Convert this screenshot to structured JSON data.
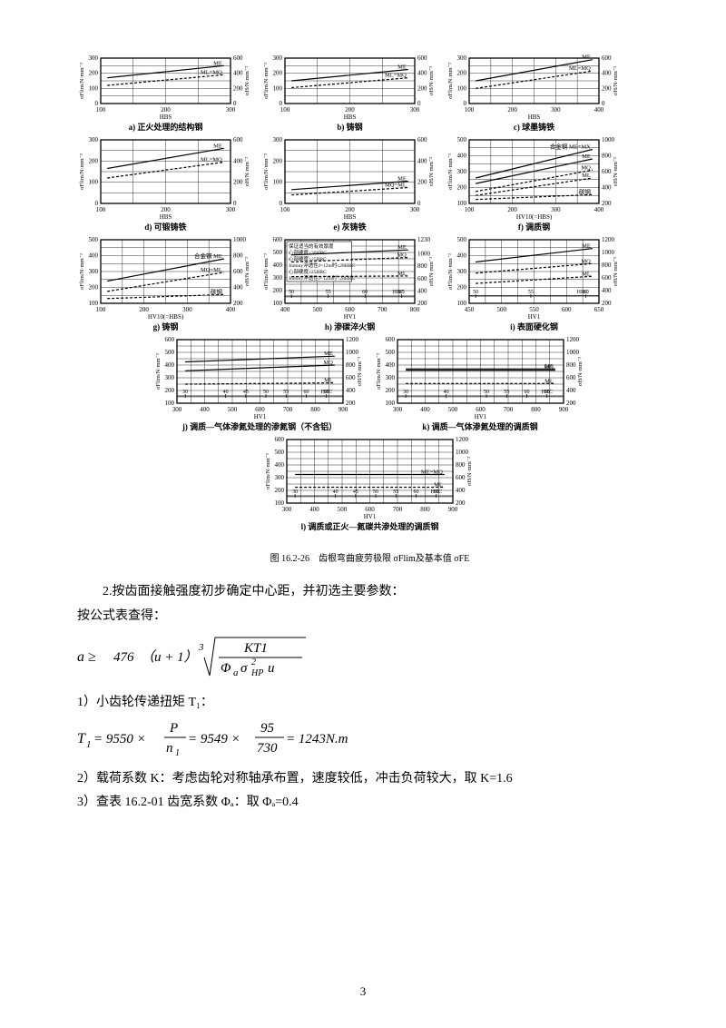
{
  "charts": {
    "row1": [
      {
        "caption": "a) 正火处理的结构钢",
        "xlabel": "HBS",
        "yl_max": 300,
        "yl_ticks": [
          0,
          100,
          200,
          300
        ],
        "yr_max": 600,
        "yr_ticks": [
          0,
          200,
          400,
          600
        ],
        "x_min": 100,
        "x_max": 300,
        "x_ticks": [
          100,
          200,
          300
        ],
        "lines": [
          {
            "label": "ME",
            "y0": 170,
            "y1": 250,
            "dash": false
          },
          {
            "label": "ML=MQ",
            "y0": 120,
            "y1": 190,
            "dash": true
          }
        ],
        "yl_unit": "σFlim/N·mm⁻²",
        "yr_unit": "σH/N·mm⁻²"
      },
      {
        "caption": "b) 铸钢",
        "xlabel": "HBS",
        "yl_max": 300,
        "yl_ticks": [
          0,
          100,
          200,
          300
        ],
        "yr_max": 600,
        "yr_ticks": [
          0,
          200,
          400,
          600
        ],
        "x_min": 100,
        "x_max": 300,
        "x_ticks": [
          100,
          200,
          300
        ],
        "lines": [
          {
            "label": "ME",
            "y0": 150,
            "y1": 225,
            "dash": false
          },
          {
            "label": "ML=MQ",
            "y0": 105,
            "y1": 170,
            "dash": true
          }
        ],
        "yl_unit": "σFlim/N·mm⁻²",
        "yr_unit": "σH/N·mm⁻²"
      },
      {
        "caption": "c) 球墨铸铁",
        "xlabel": "HBS",
        "yl_max": 300,
        "yl_ticks": [
          0,
          100,
          200,
          300
        ],
        "yr_max": 600,
        "yr_ticks": [
          0,
          200,
          400,
          600
        ],
        "x_min": 100,
        "x_max": 400,
        "x_ticks": [
          100,
          200,
          300,
          400
        ],
        "lines": [
          {
            "label": "ME",
            "y0": 150,
            "y1": 290,
            "dash": false
          },
          {
            "label": "ML=MQ",
            "y0": 100,
            "y1": 215,
            "dash": true
          }
        ],
        "yl_unit": "σFlim/N·mm⁻²",
        "yr_unit": "σH/N·mm⁻²"
      }
    ],
    "row2": [
      {
        "caption": "d) 可锻铸铁",
        "xlabel": "HBS",
        "yl_max": 300,
        "yl_ticks": [
          0,
          100,
          200,
          300
        ],
        "yr_max": 600,
        "yr_ticks": [
          0,
          200,
          400,
          600
        ],
        "x_min": 100,
        "x_max": 300,
        "x_ticks": [
          100,
          200,
          300
        ],
        "lines": [
          {
            "label": "ME",
            "y0": 165,
            "y1": 260,
            "dash": false
          },
          {
            "label": "ML=MQ",
            "y0": 120,
            "y1": 195,
            "dash": true
          }
        ],
        "yl_unit": "σFlim/N·mm⁻²",
        "yr_unit": "σH/N·mm⁻²"
      },
      {
        "caption": "e) 灰铸铁",
        "xlabel": "HBS",
        "yl_max": 300,
        "yl_ticks": [
          0,
          100,
          200,
          300
        ],
        "yr_max": 600,
        "yr_ticks": [
          0,
          200,
          400,
          600
        ],
        "x_min": 100,
        "x_max": 300,
        "x_ticks": [
          100,
          200,
          300
        ],
        "lines": [
          {
            "label": "ME",
            "y0": 65,
            "y1": 105,
            "dash": false
          },
          {
            "label": "MQ=ML",
            "y0": 40,
            "y1": 75,
            "dash": true
          }
        ],
        "yl_unit": "σFlim/N·mm⁻²",
        "yr_unit": "σH/N·mm⁻²"
      },
      {
        "caption": "f) 调质钢",
        "xlabel": "HV10(=HBS)",
        "yl_max": 500,
        "yl_ticks": [
          100,
          200,
          300,
          400,
          500
        ],
        "yr_max": 1000,
        "yr_ticks": [
          200,
          400,
          600,
          800,
          1000
        ],
        "x_min": 100,
        "x_max": 400,
        "x_ticks": [
          100,
          200,
          300,
          400
        ],
        "lines": [
          {
            "label": "合金钢 ME=MX",
            "y0": 260,
            "y1": 440,
            "dash": false
          },
          {
            "label": "ME",
            "y0": 225,
            "y1": 380,
            "dash": false
          },
          {
            "label": "MQ",
            "y0": 175,
            "y1": 310,
            "dash": true
          },
          {
            "label": "ML",
            "y0": 150,
            "y1": 260,
            "dash": true
          },
          {
            "label": "碳钢",
            "y0": 125,
            "y1": 155,
            "dash": true
          }
        ],
        "yl_unit": "σFlim/N·mm⁻²",
        "yr_unit": "σH/N·mm⁻²",
        "shaded": true
      }
    ],
    "row3": [
      {
        "caption": "g) 铸钢",
        "xlabel": "HV10(=HBS)",
        "yl_max": 500,
        "yl_ticks": [
          100,
          200,
          300,
          400,
          500
        ],
        "yr_max": 1000,
        "yr_ticks": [
          200,
          400,
          600,
          800,
          1000
        ],
        "x_min": 100,
        "x_max": 400,
        "x_ticks": [
          100,
          200,
          300,
          400
        ],
        "lines": [
          {
            "label": "合金钢 ME",
            "y0": 240,
            "y1": 380,
            "dash": false
          },
          {
            "label": "MQ=ML",
            "y0": 175,
            "y1": 295,
            "dash": true
          },
          {
            "label": "碳钢",
            "y0": 130,
            "y1": 155,
            "dash": true
          }
        ],
        "yl_unit": "σFlim/N·mm⁻²",
        "yr_unit": "σH/N·mm⁻²",
        "shaded": true
      },
      {
        "caption": "h) 渗碳淬火钢",
        "xlabel": "HV1",
        "yl_max": 600,
        "yl_ticks": [
          100,
          200,
          300,
          400,
          500,
          600
        ],
        "yr_max": 1230,
        "yr_ticks": [
          200,
          400,
          600,
          800,
          1000,
          1230
        ],
        "x_min": 400,
        "x_max": 800,
        "x_ticks": [
          400,
          500,
          600,
          700,
          800
        ],
        "hrc_ticks": [
          50,
          55,
          60,
          65
        ],
        "boxtext": [
          "保证适当的有效厚度",
          "心部硬度≥30HRC",
          "心部硬度≥25HRC",
          "Jominy淬透性J=12m时≤28HRC",
          "心部硬度≥25HRC",
          "Jominy淬透性J=12m时<28HRC"
        ],
        "lines": [
          {
            "label": "ME",
            "y0": 480,
            "y1": 520,
            "dash": false
          },
          {
            "label": "MQ",
            "y0": 425,
            "y1": 460,
            "dash": true
          },
          {
            "label": "ML",
            "y0": 310,
            "y1": 315,
            "dash": true
          }
        ],
        "yl_unit": "σFlim/N·mm⁻²",
        "yr_unit": "σH/N·mm⁻²"
      },
      {
        "caption": "i) 表面硬化钢",
        "xlabel": "HV1",
        "yl_max": 500,
        "yl_ticks": [
          100,
          200,
          300,
          400,
          500
        ],
        "yr_max": 1200,
        "yr_ticks": [
          200,
          400,
          600,
          800,
          1000,
          1200
        ],
        "x_min": 450,
        "x_max": 650,
        "x_ticks": [
          450,
          500,
          550,
          600,
          650
        ],
        "hrc_ticks": [
          50,
          55,
          60
        ],
        "lines": [
          {
            "label": "ME",
            "y0": 360,
            "y1": 445,
            "dash": false
          },
          {
            "label": "MQ",
            "y0": 290,
            "y1": 350,
            "dash": true
          },
          {
            "label": "ML",
            "y0": 225,
            "y1": 270,
            "dash": true
          }
        ],
        "yl_unit": "σFlim/N·mm⁻²",
        "yr_unit": "σH/N·mm⁻²"
      }
    ],
    "row4": [
      {
        "caption": "j) 调质—气体渗氮处理的渗氮钢（不含铝）",
        "xlabel": "HV1",
        "yl_max": 600,
        "yl_ticks": [
          100,
          200,
          300,
          400,
          500,
          600
        ],
        "yr_max": 1200,
        "yr_ticks": [
          200,
          400,
          600,
          800,
          1000,
          1200
        ],
        "x_min": 300,
        "x_max": 900,
        "x_ticks": [
          300,
          400,
          500,
          600,
          700,
          800,
          900
        ],
        "hrc_ticks": [
          30,
          40,
          45,
          50,
          55,
          60,
          65
        ],
        "lines": [
          {
            "label": "ME",
            "y0": 425,
            "y1": 470,
            "dash": false
          },
          {
            "label": "MQ",
            "y0": 355,
            "y1": 400,
            "dash": false
          },
          {
            "label": "ML",
            "y0": 250,
            "y1": 260,
            "dash": true
          }
        ],
        "yl_unit": "σFlim/N·mm⁻²",
        "yr_unit": "σH/N·mm⁻²"
      },
      {
        "caption": "k) 调质—气体渗氮处理的调质钢",
        "xlabel": "HV1",
        "yl_max": 600,
        "yl_ticks": [
          100,
          200,
          300,
          400,
          500,
          600
        ],
        "yr_max": 1200,
        "yr_ticks": [
          200,
          400,
          600,
          800,
          1000,
          1200
        ],
        "x_min": 300,
        "x_max": 900,
        "x_ticks": [
          300,
          400,
          500,
          600,
          700,
          800,
          900
        ],
        "hrc_ticks": [
          30,
          40,
          50,
          55,
          60,
          65
        ],
        "lines": [
          {
            "label": "ME",
            "y0": 370,
            "y1": 370,
            "dash": false
          },
          {
            "label": "MQ",
            "y0": 360,
            "y1": 360,
            "dash": false
          },
          {
            "label": "ML",
            "y0": 255,
            "y1": 255,
            "dash": true
          }
        ],
        "yl_unit": "σFlim/N·mm⁻²",
        "yr_unit": "σH/N·mm⁻²"
      }
    ],
    "row5": [
      {
        "caption": "l) 调质或正火—氮碳共渗处理的调质钢",
        "xlabel": "HV1",
        "yl_max": 600,
        "yl_ticks": [
          100,
          200,
          300,
          400,
          500,
          600
        ],
        "yr_max": 1200,
        "yr_ticks": [
          200,
          400,
          600,
          800,
          1000,
          1200
        ],
        "x_min": 300,
        "x_max": 900,
        "x_ticks": [
          300,
          400,
          500,
          600,
          700,
          800,
          900
        ],
        "hrc_ticks": [
          30,
          40,
          45,
          50,
          55,
          60,
          65
        ],
        "lines": [
          {
            "label": "ME=MQ",
            "y0": 325,
            "y1": 325,
            "dash": false
          },
          {
            "label": "ML",
            "y0": 225,
            "y1": 225,
            "dash": true
          }
        ],
        "yl_unit": "σFlim/N·mm⁻²",
        "yr_unit": "σH/N·mm⁻²"
      }
    ]
  },
  "figure_caption": "图 16.2-26　齿根弯曲疲劳极限 σFlim及基本值 σFE",
  "text": {
    "line1": "2.按齿面接触强度初步确定中心距，并初选主要参数：",
    "line2": "按公式表查得：",
    "formula1_prefix": "a ≥ ",
    "formula1_const": "476",
    "formula1_uterm": "（u + 1）",
    "formula1_cube": "3",
    "formula1_num": "KT1",
    "formula1_den_a": "Φ",
    "formula1_den_b": "a",
    "formula1_den_c": "σ",
    "formula1_den_d": "HP",
    "formula1_den_e": "2",
    "formula1_den_f": "u",
    "line3": "1）小齿轮传递扭矩 T₁：",
    "formula2_lhs": "T",
    "formula2_sub1": "1",
    "formula2_eq": " = 9550 × ",
    "formula2_num1": "P",
    "formula2_den1a": "n",
    "formula2_den1b": "1",
    "formula2_mid": " = 9549 × ",
    "formula2_num2": "95",
    "formula2_den2": "730",
    "formula2_rhs": " = 1243N.m",
    "line4": "2）载荷系数 K：考虑齿轮对称轴承布置，速度较低，冲击负荷较大，取 K=1.6",
    "line5": "3）查表 16.2-01 齿宽系数 Φₐ：取 Φₐ=0.4"
  },
  "page_number": "3",
  "colors": {
    "grid": "#000000",
    "bg": "#ffffff",
    "line": "#000000"
  }
}
